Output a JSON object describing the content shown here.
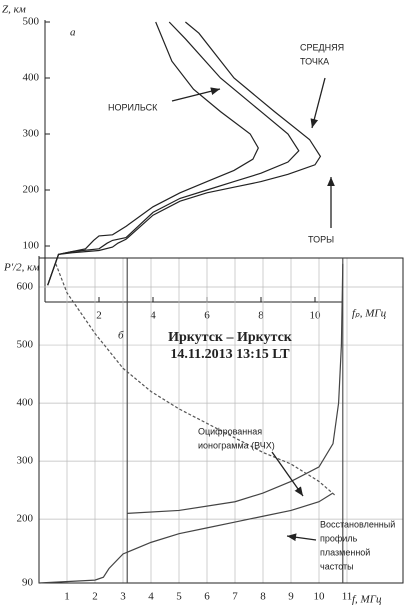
{
  "chart_data": [
    {
      "type": "line",
      "panel_label": "а",
      "y_label": "Z, км",
      "x_label": "fₚ, МГц",
      "xlim": [
        0,
        11
      ],
      "ylim": [
        0,
        500
      ],
      "xticks": [
        2,
        4,
        6,
        8,
        10
      ],
      "yticks": [
        100,
        200,
        300,
        400,
        500
      ],
      "grid": false,
      "series": [
        {
          "color": "#222",
          "x": [
            0.1,
            0.5,
            1.0,
            1.5,
            1.8,
            2.0,
            2.5,
            3,
            4,
            5,
            6,
            7,
            7.7,
            7.9,
            7.6,
            6.5,
            5.5,
            4.7,
            4.1
          ],
          "values": [
            30,
            85,
            90,
            95,
            110,
            118,
            120,
            135,
            170,
            195,
            215,
            235,
            255,
            275,
            300,
            340,
            380,
            430,
            500
          ]
        },
        {
          "color": "#222",
          "x": [
            0.1,
            0.5,
            1,
            2,
            2.3,
            2.5,
            3,
            4,
            5,
            6,
            7,
            8,
            9,
            9.4,
            9.0,
            8.0,
            6.5,
            5.2,
            4.6
          ],
          "values": [
            30,
            85,
            90,
            95,
            105,
            110,
            115,
            160,
            185,
            200,
            215,
            230,
            250,
            270,
            300,
            340,
            400,
            470,
            500
          ]
        },
        {
          "color": "#222",
          "x": [
            0.1,
            0.5,
            1,
            2,
            2.5,
            2.7,
            3,
            4,
            5,
            6,
            7,
            8,
            9,
            10,
            10.2,
            9.8,
            8.5,
            7,
            5.7,
            5.2
          ],
          "values": [
            30,
            85,
            88,
            92,
            98,
            105,
            112,
            155,
            180,
            195,
            205,
            215,
            228,
            245,
            260,
            290,
            340,
            400,
            480,
            500
          ]
        }
      ],
      "annotations": [
        {
          "lines": [
            "НОРИЛЬСК"
          ]
        },
        {
          "lines": [
            "СРЕДНЯЯ",
            "ТОЧКА"
          ]
        },
        {
          "lines": [
            "ТОРЫ"
          ]
        }
      ]
    },
    {
      "type": "line",
      "panel_label": "б",
      "title": "Иркутск – Иркутск",
      "subtitle": "14.11.2013  13:15 LT",
      "y_label": "P′/2, км",
      "x_label": "f, МГц",
      "xlim": [
        0,
        13
      ],
      "ylim": [
        90,
        650
      ],
      "xticks": [
        1,
        2,
        3,
        4,
        5,
        6,
        7,
        8,
        9,
        10,
        11
      ],
      "yticks": [
        90,
        200,
        300,
        400,
        500,
        600
      ],
      "grid": true,
      "vlines": [
        3.15,
        10.85
      ],
      "series": [
        {
          "color": "#444",
          "dash": false,
          "x": [
            3.15,
            5,
            7,
            8,
            9,
            10,
            10.5,
            10.7,
            10.8,
            10.85
          ],
          "values": [
            210,
            215,
            230,
            245,
            265,
            290,
            330,
            400,
            500,
            640
          ]
        },
        {
          "color": "#444",
          "dash": false,
          "x": [
            0,
            2,
            2.3,
            2.5,
            3,
            4,
            5,
            6,
            7,
            8,
            9,
            10,
            10.5
          ],
          "values": [
            90,
            95,
            100,
            115,
            140,
            160,
            175,
            185,
            195,
            205,
            215,
            230,
            245
          ]
        },
        {
          "color": "#555",
          "dash": true,
          "x": [
            0.6,
            1,
            2,
            3,
            4,
            5,
            6,
            7,
            8,
            9,
            10,
            10.6
          ],
          "values": [
            640,
            590,
            520,
            460,
            420,
            390,
            365,
            340,
            315,
            295,
            265,
            240
          ]
        }
      ],
      "annotations": [
        {
          "lines": [
            "Оцифрованная",
            "ионограмма (ВЧХ)"
          ]
        },
        {
          "lines": [
            "Восстановленный",
            "профиль",
            "плазменной",
            "частоты"
          ]
        }
      ]
    }
  ]
}
